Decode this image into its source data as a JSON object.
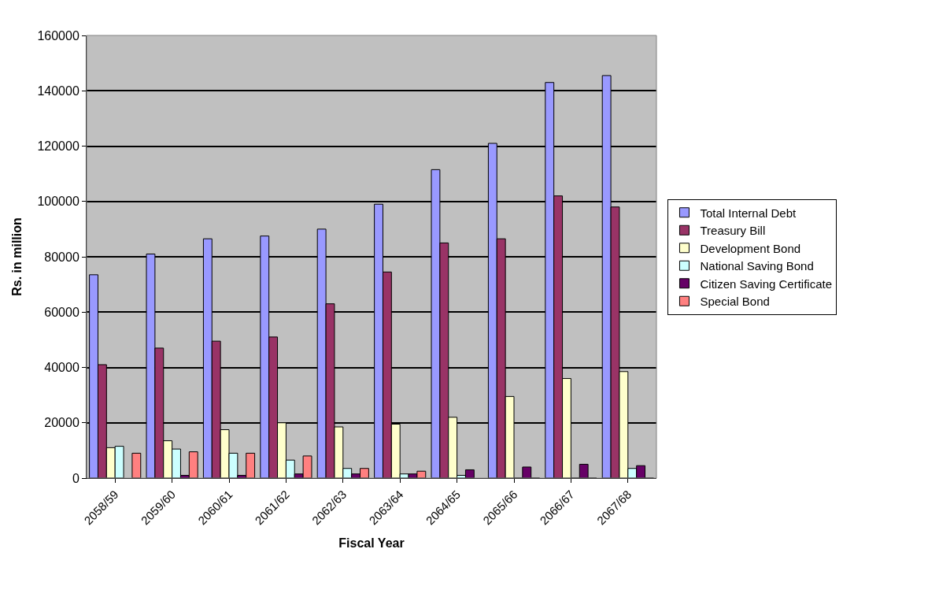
{
  "chart_data": {
    "type": "bar",
    "xlabel": "Fiscal Year",
    "ylabel": "Rs. in million",
    "categories": [
      "2058/59",
      "2059/60",
      "2060/61",
      "2061/62",
      "2062/63",
      "2063/64",
      "2064/65",
      "2065/66",
      "2066/67",
      "2067/68"
    ],
    "series": [
      {
        "name": "Total Internal Debt",
        "color": "#9999ff",
        "values": [
          73500,
          81000,
          86500,
          87500,
          90000,
          99000,
          111500,
          121000,
          143000,
          145500
        ]
      },
      {
        "name": "Treasury Bill",
        "color": "#993366",
        "values": [
          41000,
          47000,
          49500,
          51000,
          63000,
          74500,
          85000,
          86500,
          102000,
          98000
        ]
      },
      {
        "name": "Development Bond",
        "color": "#ffffcc",
        "values": [
          11000,
          13500,
          17500,
          20000,
          18500,
          19500,
          22000,
          29500,
          36000,
          38500
        ]
      },
      {
        "name": "National Saving Bond",
        "color": "#ccffff",
        "values": [
          11500,
          10500,
          9000,
          6500,
          3500,
          1500,
          1000,
          0,
          0,
          3500
        ]
      },
      {
        "name": "Citizen Saving Certificate",
        "color": "#660066",
        "values": [
          null,
          1000,
          1000,
          1500,
          1500,
          1500,
          3000,
          4000,
          5000,
          4500
        ]
      },
      {
        "name": "Special Bond",
        "color": "#ff8080",
        "values": [
          9000,
          9500,
          9000,
          8000,
          3500,
          2500,
          null,
          0,
          0,
          0
        ]
      }
    ],
    "ylim": [
      0,
      160000
    ],
    "yticks": [
      0,
      20000,
      40000,
      60000,
      80000,
      100000,
      120000,
      140000,
      160000
    ],
    "grid": "y",
    "legend": "right"
  }
}
